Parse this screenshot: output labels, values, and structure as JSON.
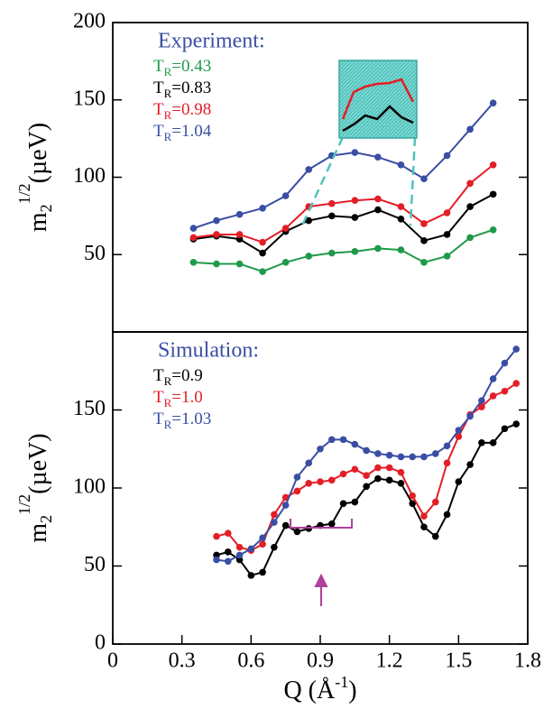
{
  "chart_data": [
    {
      "type": "line",
      "legend_title": "Experiment:",
      "legend_title_color": "#3a4ea3",
      "y_label": [
        "m",
        "2",
        "1/2",
        "(µeV)"
      ],
      "x": [
        0.35,
        0.45,
        0.55,
        0.65,
        0.75,
        0.85,
        0.95,
        1.05,
        1.15,
        1.25,
        1.35,
        1.45,
        1.55,
        1.65
      ],
      "series": [
        {
          "name": [
            "T",
            "R",
            "=0.43"
          ],
          "color": "#1f9a4a",
          "values": [
            45,
            44,
            44,
            39,
            45,
            49,
            51,
            52,
            54,
            53,
            45,
            49,
            61,
            66
          ]
        },
        {
          "name": [
            "T",
            "R",
            "=0.83"
          ],
          "color": "#000000",
          "values": [
            60,
            62,
            60,
            51,
            65,
            72,
            75,
            74,
            79,
            73,
            59,
            63,
            81,
            89
          ]
        },
        {
          "name": [
            "T",
            "R",
            "=0.98"
          ],
          "color": "#e41e26",
          "values": [
            61,
            63,
            63,
            58,
            67,
            81,
            83,
            85,
            86,
            81,
            70,
            77,
            96,
            108
          ]
        },
        {
          "name": [
            "T",
            "R",
            "=1.04"
          ],
          "color": "#3a4ea3",
          "values": [
            67,
            72,
            76,
            80,
            88,
            105,
            114,
            116,
            113,
            108,
            99,
            114,
            131,
            148
          ]
        }
      ],
      "xlim": [
        0,
        1.8
      ],
      "ylim": [
        0,
        200
      ],
      "yticks": [
        50,
        100,
        150,
        200
      ]
    },
    {
      "type": "line",
      "legend_title": "Simulation:",
      "legend_title_color": "#3a4ea3",
      "y_label": [
        "m",
        "2",
        "1/2",
        "(µeV)"
      ],
      "x_label": [
        "Q (Å",
        "-1",
        ")"
      ],
      "x": [
        0.45,
        0.5,
        0.55,
        0.6,
        0.65,
        0.7,
        0.75,
        0.8,
        0.85,
        0.9,
        0.95,
        1.0,
        1.05,
        1.1,
        1.15,
        1.2,
        1.25,
        1.3,
        1.35,
        1.4,
        1.45,
        1.5,
        1.55,
        1.6,
        1.65,
        1.7,
        1.75
      ],
      "series": [
        {
          "name": [
            "T",
            "R",
            "=0.9"
          ],
          "color": "#000000",
          "values": [
            57,
            59,
            54,
            44,
            46,
            62,
            76,
            72,
            74,
            76,
            77,
            90,
            91,
            101,
            106,
            105,
            103,
            90,
            75,
            69,
            83,
            104,
            115,
            129,
            129,
            138,
            141
          ]
        },
        {
          "name": [
            "T",
            "R",
            "=1.0"
          ],
          "color": "#e41e26",
          "values": [
            69,
            71,
            62,
            60,
            64,
            83,
            94,
            98,
            103,
            104,
            105,
            109,
            112,
            108,
            113,
            113,
            110,
            95,
            82,
            91,
            116,
            133,
            147,
            152,
            159,
            162,
            167
          ]
        },
        {
          "name": [
            "T",
            "R",
            "=1.03"
          ],
          "color": "#3a4ea3",
          "values": [
            54,
            53,
            57,
            61,
            68,
            78,
            89,
            107,
            116,
            125,
            131,
            131,
            128,
            124,
            122,
            121,
            120,
            120,
            120,
            122,
            127,
            137,
            146,
            156,
            170,
            180,
            189
          ]
        }
      ],
      "xlim": [
        0,
        1.8
      ],
      "xticks": [
        0,
        0.3,
        0.6,
        0.9,
        1.2,
        1.5,
        1.8
      ],
      "ylim": [
        0,
        200
      ],
      "yticks": [
        0,
        50,
        100,
        150
      ]
    }
  ]
}
